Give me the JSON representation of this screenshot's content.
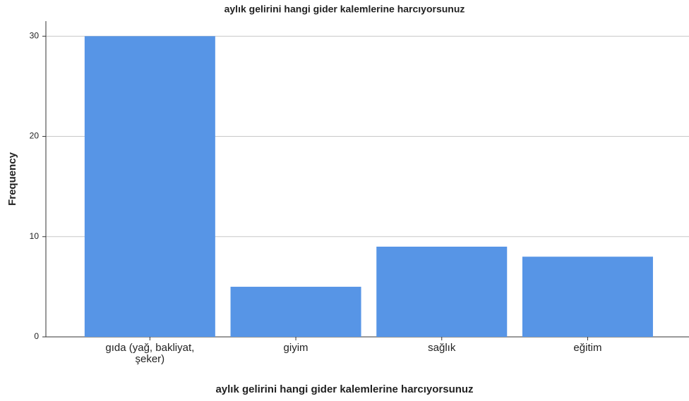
{
  "chart_data": {
    "type": "bar",
    "title": "aylık gelirini hangi gider kalemlerine harcıyorsunuz",
    "x_label": "aylık gelirini hangi gider kalemlerine harcıyorsunuz",
    "y_label": "Frequency",
    "categories": [
      "gıda (yağ, bakliyat, şeker)",
      "giyim",
      "sağlık",
      "eğitim"
    ],
    "values": [
      30,
      5,
      9,
      8
    ],
    "color": "#5795e6",
    "ylim": [
      0,
      31.5
    ],
    "yticks": [
      0,
      10,
      20,
      30
    ],
    "grid": true
  }
}
